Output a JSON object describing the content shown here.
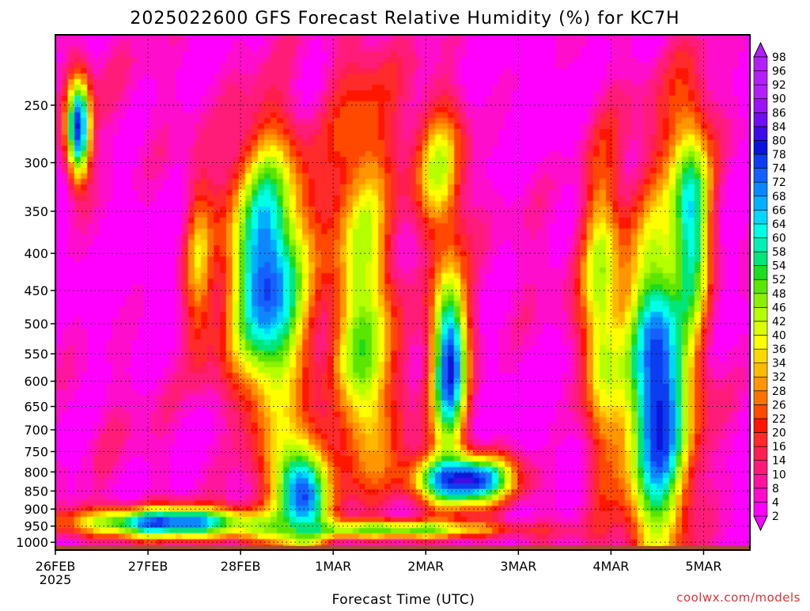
{
  "chart_data": {
    "type": "heatmap",
    "title": "2025022600 GFS Forecast Relative Humidity (%) for KC7H",
    "xlabel": "Forecast Time (UTC)",
    "ylabel": "",
    "y_scale": "log",
    "y_reversed": true,
    "y_range": [
      1025,
      200
    ],
    "y_ticks": [
      "250",
      "300",
      "350",
      "400",
      "450",
      "500",
      "550",
      "600",
      "650",
      "700",
      "750",
      "800",
      "850",
      "900",
      "950",
      "1000"
    ],
    "x_ticks": [
      "26FEB",
      "27FEB",
      "28FEB",
      "1MAR",
      "2MAR",
      "3MAR",
      "4MAR",
      "5MAR"
    ],
    "x_tick_sub": "2025",
    "x_range_days": [
      0,
      7.5
    ],
    "grid": true,
    "colorbar": {
      "levels": [
        "2",
        "4",
        "8",
        "10",
        "14",
        "16",
        "20",
        "22",
        "26",
        "28",
        "32",
        "34",
        "36",
        "40",
        "42",
        "46",
        "48",
        "52",
        "54",
        "58",
        "60",
        "64",
        "66",
        "68",
        "72",
        "74",
        "78",
        "80",
        "84",
        "86",
        "90",
        "92",
        "96",
        "98"
      ],
      "colors": [
        "#ff00ff",
        "#ff0ccc",
        "#ff129c",
        "#ff1a78",
        "#ff1f50",
        "#ff2a2a",
        "#ff1500",
        "#ff4a00",
        "#ff7200",
        "#ff9600",
        "#ffba00",
        "#ffd800",
        "#ffff00",
        "#dcff00",
        "#b4ff00",
        "#8cf000",
        "#5ae600",
        "#1edc1e",
        "#00e678",
        "#00f0b4",
        "#00ffe6",
        "#00d7ff",
        "#00b0ff",
        "#0a87ff",
        "#1460ff",
        "#0f3cf0",
        "#0a14dc",
        "#3c0ae6",
        "#6e0ff0",
        "#9614f5",
        "#b41efa"
      ],
      "position": "right"
    },
    "terrain_color": "#a0522d",
    "features": [
      {
        "center": [
          0.25,
          270
        ],
        "half_width": 0.13,
        "log_half_depth": 0.17,
        "value": 80
      },
      {
        "center": [
          1.55,
          420
        ],
        "half_width": 0.16,
        "log_half_depth": 0.32,
        "value": 30
      },
      {
        "center": [
          2.3,
          430
        ],
        "half_width": 0.42,
        "log_half_depth": 0.45,
        "value": 76
      },
      {
        "center": [
          2.65,
          850
        ],
        "half_width": 0.3,
        "log_half_depth": 0.18,
        "value": 78
      },
      {
        "center": [
          3.3,
          380
        ],
        "half_width": 0.38,
        "log_half_depth": 0.55,
        "value": 36
      },
      {
        "center": [
          3.35,
          560
        ],
        "half_width": 0.25,
        "log_half_depth": 0.35,
        "value": 50
      },
      {
        "center": [
          4.15,
          310
        ],
        "half_width": 0.28,
        "log_half_depth": 0.22,
        "value": 40
      },
      {
        "center": [
          4.25,
          560
        ],
        "half_width": 0.2,
        "log_half_depth": 0.3,
        "value": 78
      },
      {
        "center": [
          4.4,
          820
        ],
        "half_width": 0.55,
        "log_half_depth": 0.08,
        "value": 84
      },
      {
        "center": [
          5.9,
          480
        ],
        "half_width": 0.22,
        "log_half_depth": 0.5,
        "value": 46
      },
      {
        "center": [
          6.5,
          620
        ],
        "half_width": 0.35,
        "log_half_depth": 0.55,
        "value": 82
      },
      {
        "center": [
          6.85,
          360
        ],
        "half_width": 0.22,
        "log_half_depth": 0.35,
        "value": 66
      },
      {
        "center": [
          1.25,
          940
        ],
        "half_width": 1.1,
        "log_half_depth": 0.05,
        "value": 74
      },
      {
        "center": [
          3.5,
          960
        ],
        "half_width": 1.4,
        "log_half_depth": 0.03,
        "value": 52
      }
    ]
  },
  "credit": "coolwx.com/models"
}
